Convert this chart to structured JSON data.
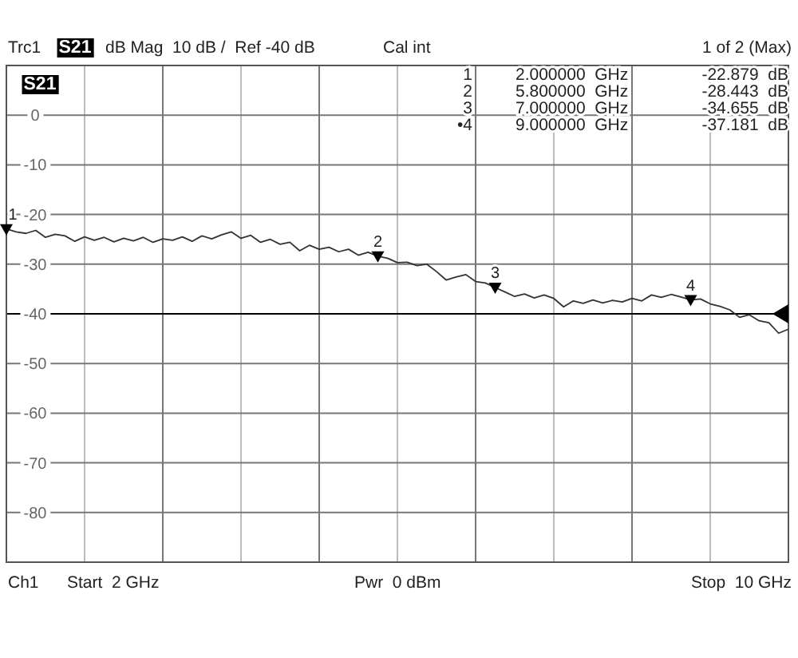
{
  "chart_data": {
    "type": "line",
    "annotations": [
      "Trc1",
      "S21",
      "dB Mag  10 dB /  Ref -40 dB",
      "Cal int",
      "1 of 2 (Max)",
      "1",
      "2.000000  GHz",
      "-22.879  dB",
      "2",
      "5.800000  GHz",
      "-28.443  dB",
      "3",
      "7.000000  GHz",
      "-34.655  dB",
      "•4",
      "9.000000  GHz",
      "-37.181  dB",
      "S21",
      "Ch1",
      "Start  2 GHz",
      "Pwr  0 dBm",
      "Stop  10 GHz",
      "1",
      "2",
      "3",
      "4"
    ],
    "categories": [
      null,
      null,
      null,
      null,
      null,
      null,
      null,
      null,
      null,
      null,
      null,
      null,
      null,
      null,
      null,
      null,
      null,
      null,
      null,
      null,
      null,
      null,
      null,
      null,
      null,
      null,
      null,
      null,
      null,
      null,
      null,
      null,
      null,
      null,
      null,
      null,
      null,
      null,
      null,
      null,
      null,
      null,
      null,
      null,
      null,
      null,
      null,
      null,
      null,
      null,
      null,
      null,
      null,
      null,
      null,
      null,
      null,
      null,
      null,
      null,
      null,
      null,
      null,
      null,
      null,
      null,
      null,
      null,
      null,
      null,
      null,
      null,
      null,
      null,
      null,
      null,
      null,
      null,
      null,
      null,
      null
    ],
    "ylim": [
      -90,
      10
    ],
    "yticks": [
      0,
      -10,
      -20,
      -30,
      -40,
      -50,
      -60,
      -70,
      -80
    ],
    "tick_labels": "y",
    "grid": true,
    "line_style": "solid",
    "ref_lines": [
      {
        "axis": "y",
        "value": -40,
        "label": null,
        "color": "#000000"
      }
    ],
    "series": [
      {
        "marker": "none",
        "color": "#333333",
        "values": [
          -22.9,
          -23.5,
          -23.8,
          -23.2,
          -24.6,
          -24.0,
          -24.3,
          -25.4,
          -24.5,
          -25.2,
          -24.6,
          -25.5,
          -24.8,
          -25.3,
          -24.6,
          -25.6,
          -24.9,
          -25.2,
          -24.5,
          -25.4,
          -24.3,
          -24.9,
          -24.1,
          -23.5,
          -24.8,
          -24.2,
          -25.6,
          -25.0,
          -26.0,
          -25.6,
          -27.3,
          -26.2,
          -27.0,
          -26.6,
          -27.5,
          -27.0,
          -28.2,
          -27.6,
          -28.4,
          -28.8,
          -29.7,
          -29.6,
          -30.3,
          -30.0,
          -31.5,
          -33.2,
          -32.6,
          -32.1,
          -33.5,
          -33.8,
          -34.7,
          -35.6,
          -36.5,
          -36.0,
          -36.8,
          -36.2,
          -36.9,
          -38.6,
          -37.4,
          -37.9,
          -37.2,
          -37.8,
          -37.3,
          -37.6,
          -36.9,
          -37.4,
          -36.2,
          -36.7,
          -36.1,
          -36.6,
          -37.2,
          -37.0,
          -38.0,
          -38.5,
          -39.2,
          -40.7,
          -40.2,
          -41.4,
          -41.8,
          -43.9,
          -43.1
        ]
      },
      {
        "type": "scatter",
        "marker": "triangle",
        "color": "#000000",
        "values": [
          -22.9,
          null,
          null,
          null,
          null,
          null,
          null,
          null,
          null,
          null,
          null,
          null,
          null,
          null,
          null,
          null,
          null,
          null,
          null,
          null,
          null,
          null,
          null,
          null,
          null,
          null,
          null,
          null,
          null,
          null,
          null,
          null,
          null,
          null,
          null,
          null,
          null,
          null,
          -28.4,
          null,
          null,
          null,
          null,
          null,
          null,
          null,
          null,
          null,
          null,
          null,
          -34.7,
          null,
          null,
          null,
          null,
          null,
          null,
          null,
          null,
          null,
          null,
          null,
          null,
          null,
          null,
          null,
          null,
          null,
          null,
          null,
          -37.2,
          null,
          null,
          null,
          null,
          null,
          null,
          null,
          null,
          null,
          null
        ]
      }
    ]
  }
}
